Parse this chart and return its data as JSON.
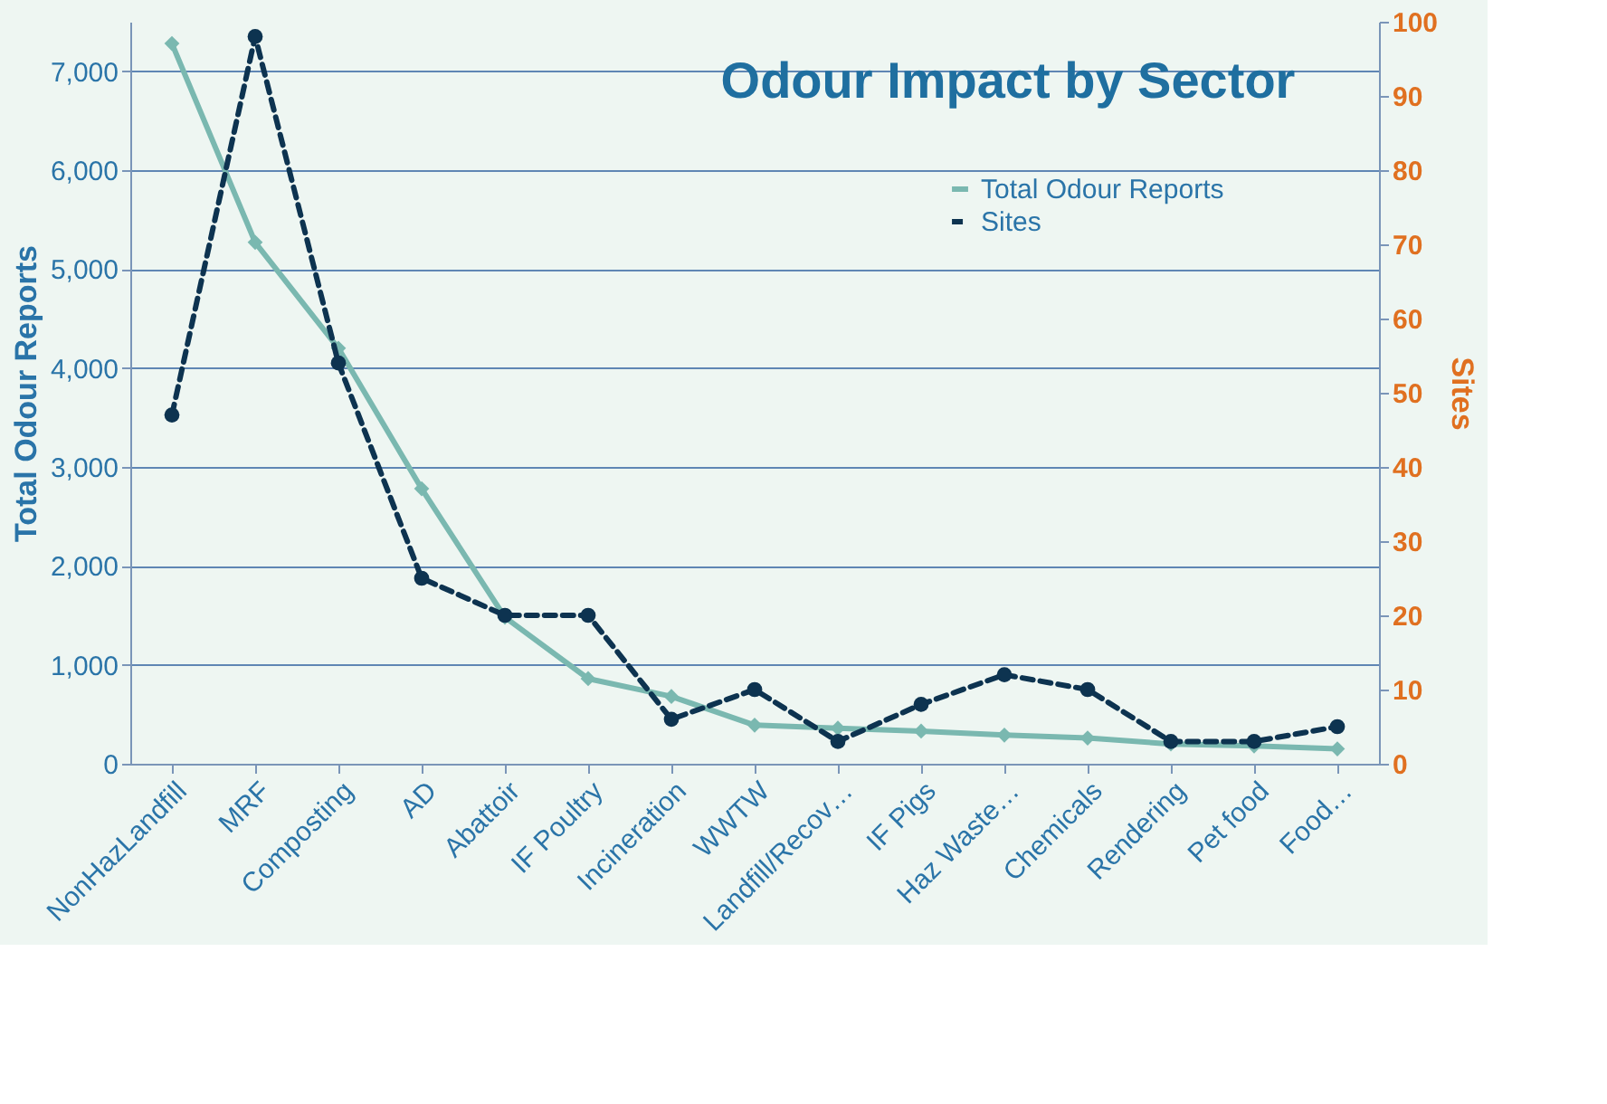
{
  "chart_data": {
    "type": "line",
    "title": "Odour Impact by Sector",
    "ylabel": "Total Odour Reports",
    "y2label": "Sites",
    "categories": [
      "NonHazLandfill",
      "MRF",
      "Composting",
      "AD",
      "Abattoir",
      "IF Poultry",
      "Incineration",
      "WWTW",
      "Landfill/Recov…",
      "IF Pigs",
      "Haz Waste…",
      "Chemicals",
      "Rendering",
      "Pet food",
      "Food…"
    ],
    "series": [
      {
        "name": "Total Odour Reports",
        "color": "#7ab8b0",
        "marker": "diamond",
        "line_style": "solid",
        "values": [
          7280,
          5270,
          4200,
          2780,
          1480,
          860,
          680,
          390,
          360,
          330,
          290,
          260,
          200,
          180,
          150
        ]
      },
      {
        "name": "Sites",
        "color": "#0d3350",
        "marker": "circle",
        "line_style": "dashed",
        "axis": "y2",
        "values": [
          47,
          98,
          54,
          25,
          20,
          20,
          6,
          10,
          3,
          8,
          12,
          10,
          3,
          3,
          5
        ]
      }
    ],
    "ylim": [
      0,
      7500
    ],
    "yticks": [
      {
        "value": 0,
        "label": "0"
      },
      {
        "value": 1000,
        "label": "1,000"
      },
      {
        "value": 2000,
        "label": "2,000"
      },
      {
        "value": 3000,
        "label": "3,000"
      },
      {
        "value": 4000,
        "label": "4,000"
      },
      {
        "value": 5000,
        "label": "5,000"
      },
      {
        "value": 6000,
        "label": "6,000"
      },
      {
        "value": 7000,
        "label": "7,000"
      }
    ],
    "y2lim": [
      0,
      100
    ],
    "y2ticks": [
      0,
      10,
      20,
      30,
      40,
      50,
      60,
      70,
      80,
      90,
      100
    ],
    "grid": "y",
    "legend": "top right"
  }
}
